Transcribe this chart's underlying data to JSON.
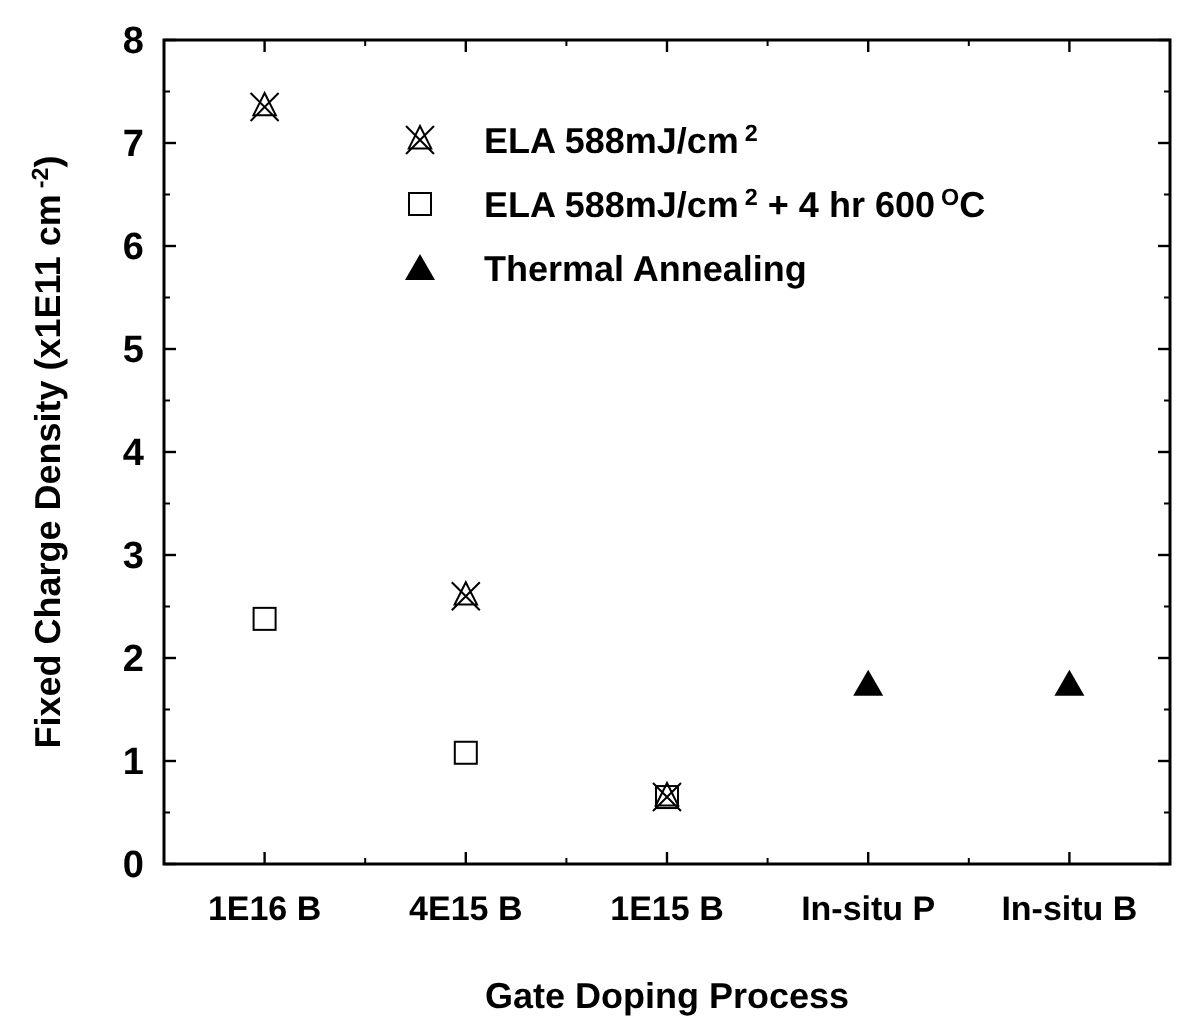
{
  "chart_data": {
    "type": "scatter",
    "xlabel": "Gate Doping Process",
    "ylabel": "Fixed Charge Density (x1E11 cm$^{-2}$)",
    "categories": [
      "1E16 B",
      "4E15 B",
      "1E15 B",
      "In-situ P",
      "In-situ B"
    ],
    "ylim": [
      0,
      8
    ],
    "yticks": [
      0,
      1,
      2,
      3,
      4,
      5,
      6,
      7,
      8
    ],
    "grid": false,
    "legend": "top right",
    "series": [
      {
        "name": "ELA 588mJ/cm$^{2}$",
        "color": "#000000",
        "marker": "cross",
        "values": [
          7.35,
          2.6,
          0.65,
          null,
          null
        ]
      },
      {
        "name": "ELA 588mJ/cm$^{2}$ + 4 hr 600$^{O}$C",
        "color": "#000000",
        "marker": "square",
        "values": [
          2.38,
          1.08,
          0.65,
          null,
          null
        ]
      },
      {
        "name": "Thermal Annealing",
        "color": "#000000",
        "marker": "triangle",
        "values": [
          null,
          null,
          null,
          1.75,
          1.75
        ]
      }
    ]
  }
}
